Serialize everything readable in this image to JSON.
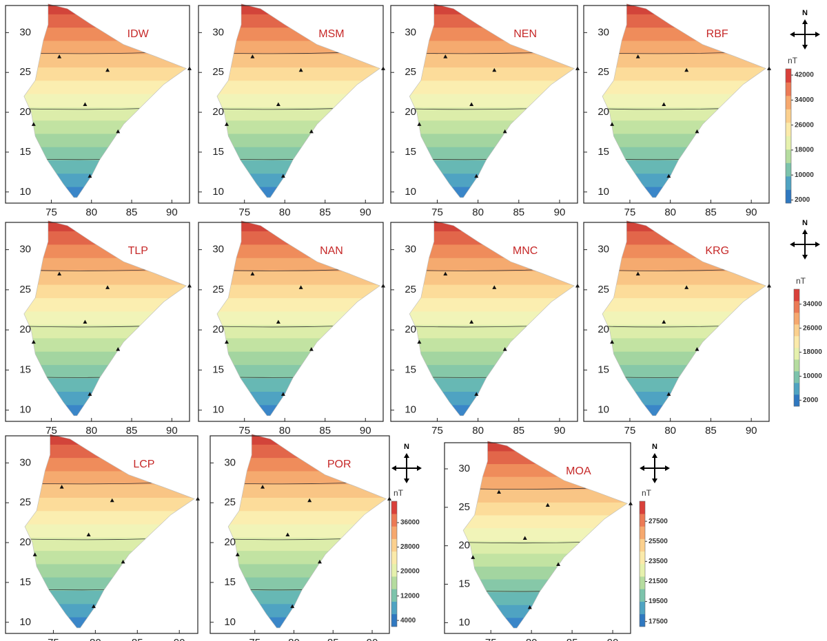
{
  "axes": {
    "xlim": [
      69.3,
      92.2
    ],
    "ylim": [
      8.6,
      33.4
    ],
    "xticks": [
      75,
      80,
      85,
      90
    ],
    "yticks": [
      10,
      15,
      20,
      25,
      30
    ]
  },
  "panels": [
    {
      "label": "IDW"
    },
    {
      "label": "MSM"
    },
    {
      "label": "NEN"
    },
    {
      "label": "RBF"
    },
    {
      "label": "TLP"
    },
    {
      "label": "NAN"
    },
    {
      "label": "MNC"
    },
    {
      "label": "KRG"
    },
    {
      "label": "LCP"
    },
    {
      "label": "POR"
    },
    {
      "label": "MOA"
    }
  ],
  "compasses": [
    {
      "label": "N"
    },
    {
      "label": "N"
    },
    {
      "label": "N"
    },
    {
      "label": "N"
    }
  ],
  "colorbars": [
    {
      "unit": "nT",
      "lim": [
        1000,
        44000
      ],
      "ticks": [
        2000,
        10000,
        18000,
        26000,
        34000,
        42000
      ]
    },
    {
      "unit": "nT",
      "lim": [
        0,
        39000
      ],
      "ticks": [
        2000,
        10000,
        18000,
        26000,
        34000
      ]
    },
    {
      "unit": "nT",
      "lim": [
        2000,
        43000
      ],
      "ticks": [
        4000,
        12000,
        20000,
        28000,
        36000
      ]
    },
    {
      "unit": "nT",
      "lim": [
        17000,
        29500
      ],
      "ticks": [
        17500,
        19500,
        21500,
        23500,
        25500,
        27500
      ]
    }
  ]
}
